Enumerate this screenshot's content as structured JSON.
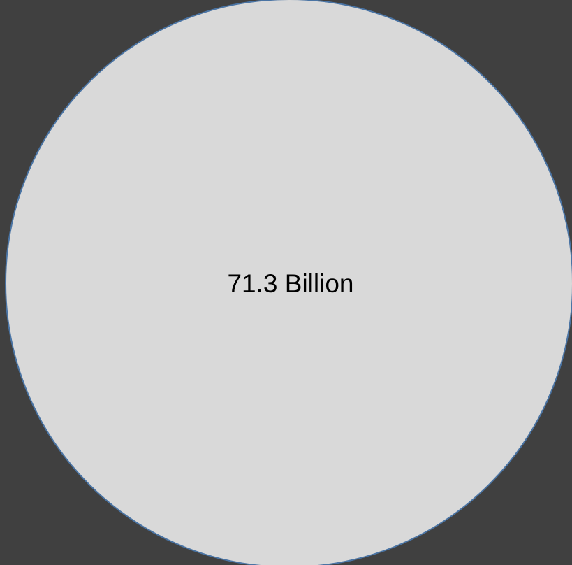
{
  "diagram": {
    "label": "71.3 Billion",
    "colors": {
      "background": "#404040",
      "circle_fill": "#d9d9d9",
      "circle_stroke": "#4a74a4",
      "text": "#000000"
    }
  }
}
